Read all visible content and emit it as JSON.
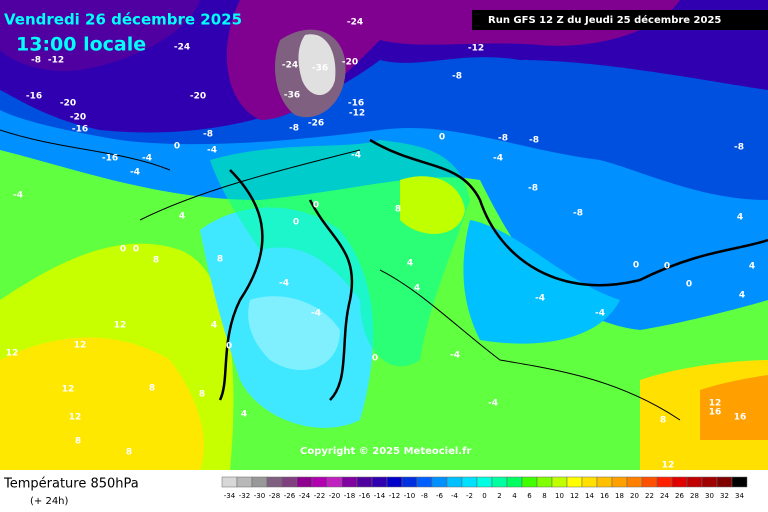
{
  "header": {
    "date": "Vendredi 26 décembre 2025",
    "time": "13:00 locale",
    "run": "Run GFS 12 Z du Jeudi 25 décembre 2025"
  },
  "copyright": "Copyright © 2025 Meteociel.fr",
  "footer": {
    "title": "Température 850hPa",
    "subtitle": "(+ 24h)"
  },
  "legend": {
    "ticks": [
      -34,
      -32,
      -30,
      -28,
      -26,
      -24,
      -22,
      -20,
      -18,
      -16,
      -14,
      -12,
      -10,
      -8,
      -6,
      -4,
      -2,
      0,
      2,
      4,
      6,
      8,
      10,
      12,
      14,
      16,
      18,
      20,
      22,
      24,
      26,
      28,
      30,
      32,
      34
    ],
    "colors": [
      "#d8d8d8",
      "#b8b8b8",
      "#989898",
      "#806080",
      "#804080",
      "#900090",
      "#b000b0",
      "#c020c0",
      "#8000a0",
      "#5000a0",
      "#3000b0",
      "#0000c8",
      "#0030e0",
      "#0060ff",
      "#0090ff",
      "#00c0ff",
      "#00e0ff",
      "#00ffe0",
      "#00ffa0",
      "#00ff60",
      "#40ff00",
      "#80ff00",
      "#c0ff00",
      "#ffff00",
      "#ffe000",
      "#ffc000",
      "#ffa000",
      "#ff8000",
      "#ff5000",
      "#ff2000",
      "#e00000",
      "#c00000",
      "#a00000",
      "#800000",
      "#000000"
    ]
  },
  "map_labels": [
    -24,
    -24,
    -24,
    -36,
    -20,
    -36,
    -20,
    -16,
    -12,
    -26,
    -8,
    -20,
    -20,
    -16,
    -16,
    -8,
    -12,
    -16,
    -4,
    -4,
    0,
    -8,
    -4,
    -4,
    0,
    -12,
    -8,
    -8,
    -8,
    -4,
    -8,
    -8,
    -8,
    -4,
    4,
    0,
    0,
    8,
    8,
    0,
    0,
    8,
    -4,
    -4,
    4,
    4,
    12,
    4,
    12,
    0,
    12,
    12,
    8,
    8,
    12,
    8,
    8,
    4,
    0,
    -4,
    -4,
    -4,
    -4,
    0,
    0,
    0,
    4,
    4,
    4,
    8,
    12,
    16,
    16,
    12
  ]
}
